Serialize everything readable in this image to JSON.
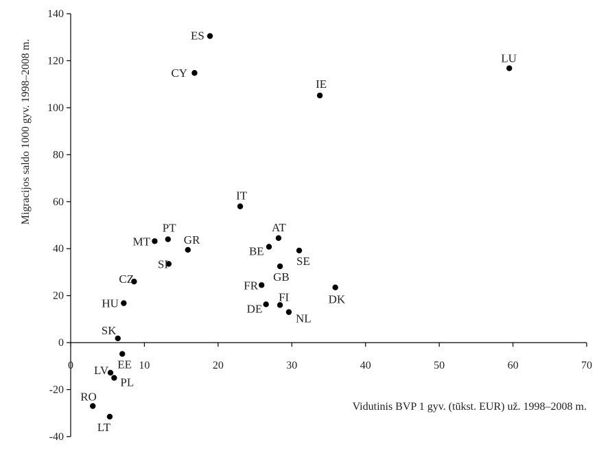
{
  "chart_data": {
    "type": "scatter",
    "xlabel": "Vidutinis BVP 1 gyv. (tūkst. EUR) už. 1998–2008 m.",
    "ylabel": "Migracijos saldo 1000 gyv. 1998–2008 m.",
    "xlim": [
      0,
      70
    ],
    "ylim": [
      -40,
      140
    ],
    "xticks": [
      0,
      10,
      20,
      30,
      40,
      50,
      60,
      70
    ],
    "yticks": [
      -40,
      -20,
      0,
      20,
      40,
      60,
      80,
      100,
      120,
      140
    ],
    "grid": false,
    "marker_color": "#000000",
    "points": [
      {
        "label": "ES",
        "x": 18.9,
        "y": 130.5
      },
      {
        "label": "CY",
        "x": 16.8,
        "y": 114.8
      },
      {
        "label": "LU",
        "x": 59.5,
        "y": 116.8
      },
      {
        "label": "IE",
        "x": 33.8,
        "y": 105.2
      },
      {
        "label": "IT",
        "x": 23.0,
        "y": 58.0
      },
      {
        "label": "PT",
        "x": 13.2,
        "y": 44.0
      },
      {
        "label": "MT",
        "x": 11.4,
        "y": 43.2
      },
      {
        "label": "GR",
        "x": 15.9,
        "y": 39.5
      },
      {
        "label": "AT",
        "x": 28.2,
        "y": 44.5
      },
      {
        "label": "BE",
        "x": 26.9,
        "y": 40.8
      },
      {
        "label": "SE",
        "x": 31.0,
        "y": 39.2
      },
      {
        "label": "SI",
        "x": 13.3,
        "y": 33.5
      },
      {
        "label": "GB",
        "x": 28.4,
        "y": 32.5
      },
      {
        "label": "CZ",
        "x": 8.6,
        "y": 26.0
      },
      {
        "label": "FR",
        "x": 25.9,
        "y": 24.5
      },
      {
        "label": "DK",
        "x": 35.9,
        "y": 23.5
      },
      {
        "label": "HU",
        "x": 7.2,
        "y": 16.8
      },
      {
        "label": "FI",
        "x": 28.4,
        "y": 16.0
      },
      {
        "label": "DE",
        "x": 26.5,
        "y": 16.3
      },
      {
        "label": "NL",
        "x": 29.6,
        "y": 13.0
      },
      {
        "label": "SK",
        "x": 6.4,
        "y": 1.8
      },
      {
        "label": "EE",
        "x": 7.0,
        "y": -4.8
      },
      {
        "label": "LV",
        "x": 5.4,
        "y": -12.8
      },
      {
        "label": "PL",
        "x": 5.9,
        "y": -15.0
      },
      {
        "label": "RO",
        "x": 3.0,
        "y": -27.0
      },
      {
        "label": "LT",
        "x": 5.3,
        "y": -31.5
      }
    ]
  }
}
